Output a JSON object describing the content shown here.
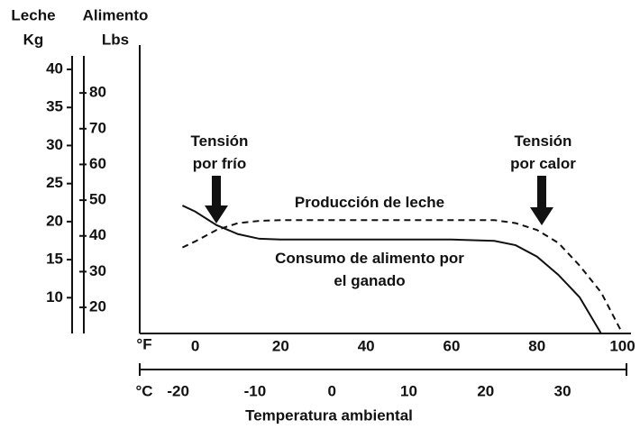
{
  "chart_data": {
    "type": "line",
    "y_title": "Leche",
    "y_unit": "Kg",
    "y2_title": "Alimento",
    "y2_unit": "Lbs",
    "x_unit": "°F",
    "x2_unit": "°C",
    "xlabel": "Temperatura ambiental",
    "xlim": [
      -13,
      102
    ],
    "xticks": [
      0,
      20,
      40,
      60,
      80,
      100
    ],
    "x2lim": [
      -25,
      38.9
    ],
    "x2ticks": [
      -20,
      -10,
      0,
      10,
      20,
      30
    ],
    "ylim": [
      5.3,
      43.2
    ],
    "yticks": [
      10,
      15,
      20,
      25,
      30,
      35,
      40
    ],
    "y2lim": [
      12.7,
      93.4
    ],
    "y2ticks": [
      20,
      30,
      40,
      50,
      60,
      70,
      80
    ],
    "x": [
      -3,
      0,
      5,
      10,
      15,
      20,
      30,
      40,
      50,
      60,
      70,
      75,
      80,
      85,
      90,
      95,
      100
    ],
    "series": [
      {
        "name": "Producción de leche",
        "color": "#000000",
        "dash": "dashed",
        "values": [
          16.6,
          17.4,
          18.9,
          19.8,
          20.1,
          20.2,
          20.2,
          20.2,
          20.2,
          20.2,
          20.2,
          19.8,
          18.9,
          17.2,
          14.2,
          10.7,
          5.3
        ]
      },
      {
        "name": "Consumo de alimento por el ganado",
        "color": "#000000",
        "dash": "solid",
        "axis": "y2",
        "values": [
          48.5,
          46.8,
          43,
          40.5,
          39.2,
          39,
          39,
          39,
          39,
          39,
          38.6,
          37.4,
          34.2,
          29.1,
          22.8,
          12.7,
          null
        ]
      }
    ],
    "annotations": [
      "Tensión por frío",
      "Tensión por calor"
    ]
  }
}
